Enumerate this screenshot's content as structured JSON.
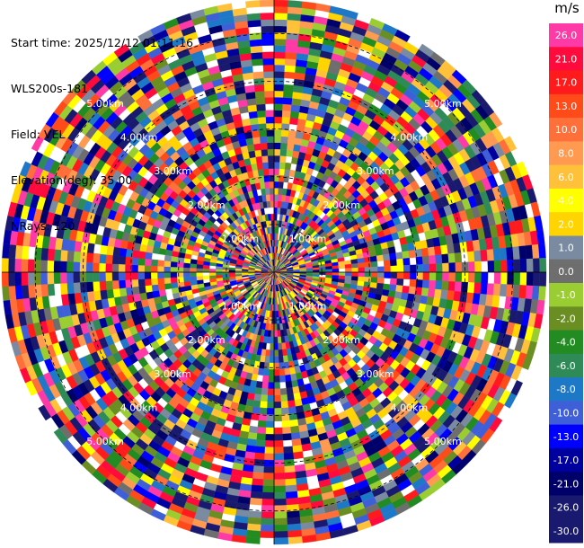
{
  "header": {
    "start_time": "Start time: 2025/12/12 01:11:16",
    "instrument": "WLS200s-181",
    "field": "Field: VEL",
    "elevation": "Elevation(deg): 35.00",
    "nrays": "NRays: 120"
  },
  "colorbar": {
    "unit": "m/s",
    "levels": [
      {
        "label": "26.0",
        "color": "#ff39a6"
      },
      {
        "label": "21.0",
        "color": "#ff0a3d"
      },
      {
        "label": "17.0",
        "color": "#ff1b1b"
      },
      {
        "label": "13.0",
        "color": "#ff4a1a"
      },
      {
        "label": "10.0",
        "color": "#ff6f3a"
      },
      {
        "label": "8.0",
        "color": "#ff9a50"
      },
      {
        "label": "6.0",
        "color": "#ffc13a"
      },
      {
        "label": "4.0",
        "color": "#ffff00"
      },
      {
        "label": "2.0",
        "color": "#ffd400"
      },
      {
        "label": "1.0",
        "color": "#7a8aa0"
      },
      {
        "label": "0.0",
        "color": "#6e6e6e"
      },
      {
        "label": "-1.0",
        "color": "#9acd32"
      },
      {
        "label": "-2.0",
        "color": "#6b8e23"
      },
      {
        "label": "-4.0",
        "color": "#228b22"
      },
      {
        "label": "-6.0",
        "color": "#2e8b57"
      },
      {
        "label": "-8.0",
        "color": "#1e78c8"
      },
      {
        "label": "-10.0",
        "color": "#3f5fd8"
      },
      {
        "label": "-13.0",
        "color": "#0000ff"
      },
      {
        "label": "-17.0",
        "color": "#00009e"
      },
      {
        "label": "-21.0",
        "color": "#00006a"
      },
      {
        "label": "-26.0",
        "color": "#191970"
      },
      {
        "label": "-30.0",
        "color": "#191970"
      }
    ]
  },
  "chart_data": {
    "type": "heatmap",
    "plot": "polar PPI",
    "field": "VEL",
    "elevation_deg": 35.0,
    "n_rays": 120,
    "range_rings_km": [
      1.0,
      2.0,
      3.0,
      4.0,
      5.0
    ],
    "range_ring_labels": [
      "1.00km",
      "2.00km",
      "3.00km",
      "4.00km",
      "5.00km"
    ],
    "max_range_km": 5.7,
    "grid": true,
    "velocity_colormap_ms": [
      -30.0,
      -26.0,
      -21.0,
      -17.0,
      -13.0,
      -10.0,
      -8.0,
      -6.0,
      -4.0,
      -2.0,
      -1.0,
      0.0,
      1.0,
      2.0,
      4.0,
      6.0,
      8.0,
      10.0,
      13.0,
      17.0,
      21.0,
      26.0
    ]
  }
}
